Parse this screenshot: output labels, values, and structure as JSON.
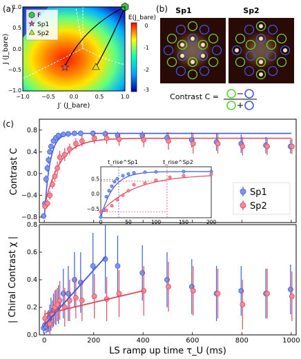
{
  "panel_labels": {
    "a": "(a)",
    "b": "(b)",
    "c": "(c)"
  },
  "heatmap": {
    "colorbar_title": "E(J_bare)",
    "colorbar_ticks": [
      "0",
      "-1",
      "-2",
      "-3"
    ],
    "x_label": "J′ (J_bare)",
    "y_label": "J (J_bare)",
    "x_ticks": [
      "−1.0",
      "−0.5",
      "0.0",
      "0.5",
      "1.0"
    ],
    "y_ticks": [
      "1.0",
      "0.5",
      "0.0",
      "−0.5",
      "−1.0"
    ],
    "legend": [
      {
        "label": "F",
        "marker": "hexagon",
        "color": "#3ec43e"
      },
      {
        "label": "Sp1",
        "marker": "star",
        "color": "#c8577a"
      },
      {
        "label": "Sp2",
        "marker": "triangle",
        "color": "#d9e021"
      }
    ]
  },
  "images": {
    "sp1_title": "Sp1",
    "sp2_title": "Sp2",
    "contrast_prefix": "Contrast C ="
  },
  "chart_data": [
    {
      "type": "scatter",
      "ylabel": "Contrast C",
      "ylim": [
        -0.9,
        1.0
      ],
      "y_ticks": [
        "0.8",
        "0.4",
        "0.0",
        "−0.4",
        "−0.8"
      ],
      "legend_position": "right",
      "series": [
        {
          "name": "Sp1",
          "color": "#3b5bdb",
          "x": [
            0,
            5,
            10,
            15,
            20,
            25,
            30,
            40,
            50,
            60,
            80,
            100,
            125,
            150,
            200,
            250,
            300,
            400,
            500,
            600,
            700,
            800,
            900,
            1000
          ],
          "y": [
            -0.78,
            -0.55,
            -0.1,
            0.1,
            0.25,
            0.4,
            0.5,
            0.6,
            0.66,
            0.7,
            0.72,
            0.73,
            0.74,
            0.74,
            0.74,
            0.73,
            0.7,
            0.7,
            0.66,
            0.62,
            0.58,
            0.55,
            0.52,
            0.5
          ],
          "err": [
            0.05,
            0.05,
            0.07,
            0.07,
            0.07,
            0.05,
            0.05,
            0.05,
            0.05,
            0.05,
            0.05,
            0.05,
            0.05,
            0.05,
            0.05,
            0.06,
            0.07,
            0.08,
            0.1,
            0.14,
            0.16,
            0.17,
            0.15,
            0.13
          ]
        },
        {
          "name": "Sp2",
          "color": "#e0475b",
          "x": [
            0,
            10,
            20,
            30,
            40,
            50,
            60,
            80,
            100,
            125,
            150,
            200,
            250,
            300,
            400,
            500,
            600,
            700,
            800,
            900,
            1000
          ],
          "y": [
            -0.6,
            -0.55,
            -0.4,
            -0.2,
            -0.05,
            0.1,
            0.3,
            0.35,
            0.45,
            0.55,
            0.6,
            0.65,
            0.65,
            0.63,
            0.62,
            0.6,
            0.55,
            0.55,
            0.5,
            0.5,
            0.5
          ],
          "err": [
            0.06,
            0.07,
            0.08,
            0.08,
            0.1,
            0.12,
            0.12,
            0.12,
            0.1,
            0.1,
            0.1,
            0.1,
            0.1,
            0.12,
            0.13,
            0.16,
            0.18,
            0.18,
            0.17,
            0.16,
            0.14
          ]
        }
      ],
      "inset": {
        "xlim": [
          0,
          200
        ],
        "ylim": [
          -0.8,
          0.9
        ],
        "x_ticks": [
          "0",
          "50",
          "100",
          "150",
          "200"
        ],
        "y_ticks": [
          "0.5",
          "0.0",
          "−0.5"
        ],
        "annotation_sp1": "t_rise^Sp1",
        "annotation_sp2": "t_rise^Sp2",
        "sp1_x": [
          0,
          5,
          10,
          15,
          20,
          25,
          30,
          40,
          50,
          60,
          80,
          100,
          150,
          200
        ],
        "sp1_y": [
          -0.78,
          -0.55,
          -0.1,
          0.1,
          0.25,
          0.4,
          0.5,
          0.6,
          0.66,
          0.7,
          0.72,
          0.73,
          0.74,
          0.74
        ],
        "sp2_x": [
          0,
          10,
          20,
          30,
          40,
          50,
          60,
          80,
          100,
          125,
          150,
          200
        ],
        "sp2_y": [
          -0.6,
          -0.55,
          -0.4,
          -0.2,
          -0.05,
          0.1,
          0.3,
          0.35,
          0.45,
          0.55,
          0.6,
          0.65
        ]
      }
    },
    {
      "type": "scatter",
      "ylabel": "| Chiral Contrast χ |",
      "xlabel": "LS ramp up time τ_U (ms)",
      "xlim": [
        -20,
        1020
      ],
      "ylim": [
        0,
        0.8
      ],
      "x_ticks": [
        "0",
        "200",
        "400",
        "600",
        "800",
        "1000"
      ],
      "y_ticks": [
        "0.8",
        "0.6",
        "0.4",
        "0.2",
        "0.0"
      ],
      "series": [
        {
          "name": "Sp1",
          "color": "#3b5bdb",
          "x": [
            0,
            5,
            10,
            15,
            20,
            25,
            30,
            40,
            50,
            60,
            80,
            100,
            125,
            150,
            200,
            250,
            300,
            400,
            500,
            600,
            700,
            800,
            900,
            1000
          ],
          "y": [
            0.05,
            0.07,
            0.06,
            0.08,
            0.1,
            0.12,
            0.15,
            0.18,
            0.2,
            0.22,
            0.3,
            0.3,
            0.4,
            0.38,
            0.5,
            0.55,
            0.5,
            0.45,
            0.4,
            0.35,
            0.3,
            0.32,
            0.3,
            0.33
          ],
          "err": [
            0.04,
            0.04,
            0.05,
            0.06,
            0.08,
            0.1,
            0.12,
            0.12,
            0.13,
            0.14,
            0.18,
            0.2,
            0.2,
            0.22,
            0.24,
            0.25,
            0.22,
            0.2,
            0.2,
            0.2,
            0.2,
            0.18,
            0.18,
            0.18
          ]
        },
        {
          "name": "Sp2",
          "color": "#e0475b",
          "x": [
            0,
            10,
            20,
            30,
            40,
            50,
            60,
            80,
            100,
            125,
            150,
            200,
            250,
            300,
            400,
            500,
            600,
            700,
            800,
            900,
            1000
          ],
          "y": [
            0.12,
            0.1,
            0.08,
            0.15,
            0.2,
            0.22,
            0.25,
            0.2,
            0.25,
            0.27,
            0.25,
            0.28,
            0.26,
            0.3,
            0.32,
            0.35,
            0.32,
            0.3,
            0.22,
            0.3,
            0.28
          ],
          "err": [
            0.06,
            0.07,
            0.08,
            0.1,
            0.12,
            0.12,
            0.14,
            0.14,
            0.15,
            0.15,
            0.15,
            0.16,
            0.16,
            0.17,
            0.18,
            0.18,
            0.18,
            0.18,
            0.18,
            0.18,
            0.18
          ]
        }
      ]
    }
  ]
}
